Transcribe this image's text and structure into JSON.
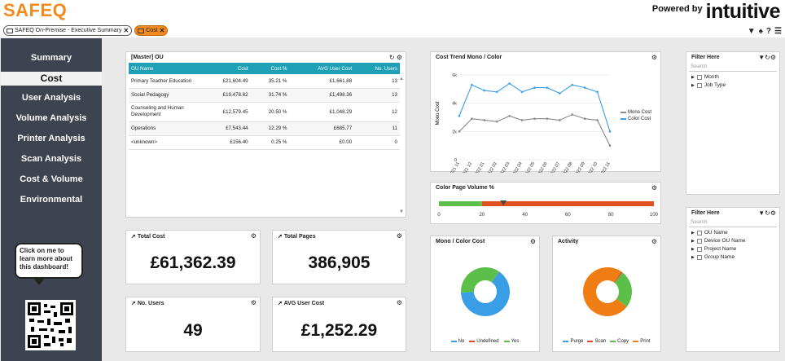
{
  "brand": {
    "logo": "SAFEQ",
    "powered_by": "Powered by",
    "vendor": "intuitive"
  },
  "breadcrumbs": [
    {
      "label": "SAFEQ On-Premise - Executive Summary"
    },
    {
      "label": "Cost"
    }
  ],
  "nav": [
    {
      "label": "Summary"
    },
    {
      "label": "Cost"
    },
    {
      "label": "User Analysis"
    },
    {
      "label": "Volume Analysis"
    },
    {
      "label": "Printer Analysis"
    },
    {
      "label": "Scan Analysis"
    },
    {
      "label": "Cost & Volume"
    },
    {
      "label": "Environmental"
    }
  ],
  "help_bubble": "Click on me to learn more about this dashboard!",
  "ou_table": {
    "title": "[Master] OU",
    "headers": [
      "OU Name",
      "Cost",
      "Cost %",
      "AVG User Cost",
      "No. Users"
    ],
    "rows": [
      [
        "Primary Teacher Education",
        "£21,604.49",
        "35.21 %",
        "£1,661.88",
        "13"
      ],
      [
        "Social Pedagogy",
        "£19,478.62",
        "31.74 %",
        "£1,498.36",
        "13"
      ],
      [
        "Counseling and Human Development",
        "£12,579.45",
        "20.50 %",
        "£1,048.29",
        "12"
      ],
      [
        "Operations",
        "£7,543.44",
        "12.29 %",
        "£685.77",
        "11"
      ],
      [
        "<unknown>",
        "£156.40",
        "0.25 %",
        "£0.00",
        "0"
      ]
    ]
  },
  "kpis": {
    "total_cost": {
      "title": "Total Cost",
      "value": "£61,362.39"
    },
    "total_pages": {
      "title": "Total Pages",
      "value": "386,905"
    },
    "users": {
      "title": "No. Users",
      "value": "49"
    },
    "avg_cost": {
      "title": "AVG User Cost",
      "value": "£1,252.29"
    }
  },
  "trend": {
    "title": "Cost Trend Mono / Color",
    "ylabel": "Mono Cost",
    "yticks": [
      "6k",
      "4k",
      "2k",
      "0"
    ],
    "x": [
      "2021 11",
      "2021 12",
      "2022 01",
      "2022 02",
      "2022 03",
      "2022 04",
      "2022 05",
      "2022 06",
      "2022 07",
      "2022 08",
      "2022 09",
      "2022 10",
      "2022 11"
    ],
    "series": [
      {
        "name": "Mono Cost",
        "color": "#888888",
        "values": [
          2000,
          2900,
          2800,
          2700,
          3100,
          2800,
          2900,
          2900,
          2800,
          3200,
          2900,
          2800,
          1000
        ]
      },
      {
        "name": "Color Cost",
        "color": "#3a9ee6",
        "values": [
          3100,
          5300,
          4900,
          4800,
          5400,
          4800,
          5100,
          5100,
          4700,
          5300,
          5100,
          4800,
          2000
        ]
      }
    ]
  },
  "volume": {
    "title": "Color Page Volume %",
    "ticks": [
      "0",
      "20",
      "40",
      "60",
      "80",
      "100"
    ],
    "green_until": 20,
    "marker": 30
  },
  "mono_color": {
    "title": "Mono / Color Cost",
    "legend": [
      {
        "label": "No",
        "color": "#3a9ee6"
      },
      {
        "label": "Undefined",
        "color": "#e8462a"
      },
      {
        "label": "Yes",
        "color": "#5cbf4a"
      }
    ],
    "values": [
      65,
      0,
      35
    ]
  },
  "activity": {
    "title": "Activity",
    "legend": [
      {
        "label": "Purge",
        "color": "#3a9ee6"
      },
      {
        "label": "Scan",
        "color": "#e8462a"
      },
      {
        "label": "Copy",
        "color": "#5cbf4a"
      },
      {
        "label": "Print",
        "color": "#ef7d14"
      }
    ],
    "values": [
      0,
      1,
      25,
      74
    ]
  },
  "filter1": {
    "title": "Filter Here",
    "search": "Search",
    "items": [
      "Month",
      "Job Type"
    ]
  },
  "filter2": {
    "title": "Filter Here",
    "search": "Search",
    "items": [
      "OU Name",
      "Device OU Name",
      "Project Name",
      "Group Name"
    ]
  }
}
